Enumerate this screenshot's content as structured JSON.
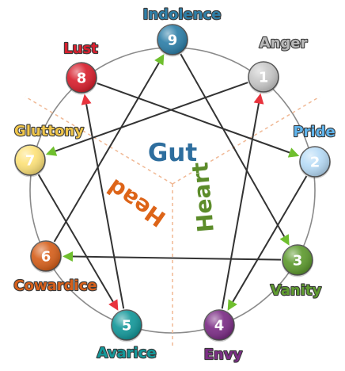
{
  "center": {
    "label": "Gut",
    "color": "#2e6e9e"
  },
  "centers": [
    {
      "id": "head",
      "label": "Head",
      "color": "#dd6418"
    },
    {
      "id": "heart",
      "label": "Heart",
      "color": "#5c8c2a"
    }
  ],
  "points": [
    {
      "num": "1",
      "label": "Anger",
      "color": "#c9c9c9",
      "label_color": "#b8b8b8"
    },
    {
      "num": "2",
      "label": "Pride",
      "color": "#b8dcf7",
      "label_color": "#5fb4ec"
    },
    {
      "num": "3",
      "label": "Vanity",
      "color": "#5f9b30",
      "label_color": "#5f9b30"
    },
    {
      "num": "4",
      "label": "Envy",
      "color": "#7c2e86",
      "label_color": "#7c2e86"
    },
    {
      "num": "5",
      "label": "Avarice",
      "color": "#14989a",
      "label_color": "#14989a"
    },
    {
      "num": "6",
      "label": "Cowardice",
      "color": "#d6601c",
      "label_color": "#d6601c"
    },
    {
      "num": "7",
      "label": "Gluttony",
      "color": "#fde27a",
      "label_color": "#f0c64a"
    },
    {
      "num": "8",
      "label": "Lust",
      "color": "#d8202e",
      "label_color": "#d8202e"
    },
    {
      "num": "9",
      "label": "Indolence",
      "color": "#2e7fa8",
      "label_color": "#2e7fa8"
    }
  ],
  "arrows": [
    {
      "from": "1",
      "to": "7",
      "color": "#6fbf2e"
    },
    {
      "from": "7",
      "to": "5",
      "color": "#e8333d"
    },
    {
      "from": "5",
      "to": "8",
      "color": "#e8333d"
    },
    {
      "from": "8",
      "to": "2",
      "color": "#6fbf2e"
    },
    {
      "from": "2",
      "to": "4",
      "color": "#6fbf2e"
    },
    {
      "from": "4",
      "to": "1",
      "color": "#e8333d"
    },
    {
      "from": "9",
      "to": "3",
      "color": "#6fbf2e"
    },
    {
      "from": "3",
      "to": "6",
      "color": "#6fbf2e"
    },
    {
      "from": "6",
      "to": "9",
      "color": "#6fbf2e"
    }
  ]
}
